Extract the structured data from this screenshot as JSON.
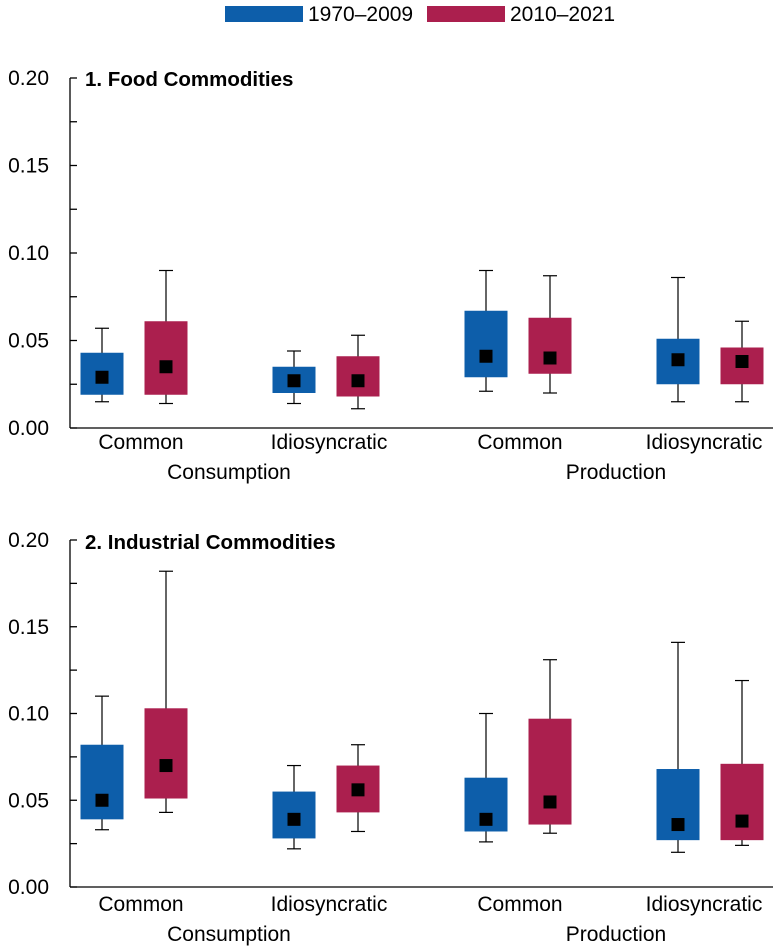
{
  "chart_data": [
    {
      "type": "box",
      "title": "1. Food Commodities",
      "legend": "top-center",
      "grid": false,
      "ylim": [
        0,
        0.2
      ],
      "yticks": [
        "0.00",
        "0.05",
        "0.10",
        "0.15",
        "0.20"
      ],
      "ytick_minor_step": 0.025,
      "groups": [
        {
          "label": "Consumption",
          "categories": [
            "Common",
            "Idiosyncratic"
          ]
        },
        {
          "label": "Production",
          "categories": [
            "Common",
            "Idiosyncratic"
          ]
        }
      ],
      "series": [
        {
          "name": "1970–2009",
          "color": "#0D5EAA",
          "boxes": [
            {
              "whisker_low": 0.015,
              "box_low": 0.019,
              "marker": 0.029,
              "box_high": 0.043,
              "whisker_high": 0.057
            },
            {
              "whisker_low": 0.014,
              "box_low": 0.02,
              "marker": 0.027,
              "box_high": 0.035,
              "whisker_high": 0.044
            },
            {
              "whisker_low": 0.021,
              "box_low": 0.029,
              "marker": 0.041,
              "box_high": 0.067,
              "whisker_high": 0.09
            },
            {
              "whisker_low": 0.015,
              "box_low": 0.025,
              "marker": 0.039,
              "box_high": 0.051,
              "whisker_high": 0.086
            }
          ]
        },
        {
          "name": "2010–2021",
          "color": "#AB1F4E",
          "boxes": [
            {
              "whisker_low": 0.014,
              "box_low": 0.019,
              "marker": 0.035,
              "box_high": 0.061,
              "whisker_high": 0.09
            },
            {
              "whisker_low": 0.011,
              "box_low": 0.018,
              "marker": 0.027,
              "box_high": 0.041,
              "whisker_high": 0.053
            },
            {
              "whisker_low": 0.02,
              "box_low": 0.031,
              "marker": 0.04,
              "box_high": 0.063,
              "whisker_high": 0.087
            },
            {
              "whisker_low": 0.015,
              "box_low": 0.025,
              "marker": 0.038,
              "box_high": 0.046,
              "whisker_high": 0.061
            }
          ]
        }
      ]
    },
    {
      "type": "box",
      "title": "2. Industrial Commodities",
      "legend": "top-center",
      "grid": false,
      "ylim": [
        0,
        0.2
      ],
      "yticks": [
        "0.00",
        "0.05",
        "0.10",
        "0.15",
        "0.20"
      ],
      "ytick_minor_step": 0.025,
      "groups": [
        {
          "label": "Consumption",
          "categories": [
            "Common",
            "Idiosyncratic"
          ]
        },
        {
          "label": "Production",
          "categories": [
            "Common",
            "Idiosyncratic"
          ]
        }
      ],
      "series": [
        {
          "name": "1970–2009",
          "color": "#0D5EAA",
          "boxes": [
            {
              "whisker_low": 0.033,
              "box_low": 0.039,
              "marker": 0.05,
              "box_high": 0.082,
              "whisker_high": 0.11
            },
            {
              "whisker_low": 0.022,
              "box_low": 0.028,
              "marker": 0.039,
              "box_high": 0.055,
              "whisker_high": 0.07
            },
            {
              "whisker_low": 0.026,
              "box_low": 0.032,
              "marker": 0.039,
              "box_high": 0.063,
              "whisker_high": 0.1
            },
            {
              "whisker_low": 0.02,
              "box_low": 0.027,
              "marker": 0.036,
              "box_high": 0.068,
              "whisker_high": 0.141
            }
          ]
        },
        {
          "name": "2010–2021",
          "color": "#AB1F4E",
          "boxes": [
            {
              "whisker_low": 0.043,
              "box_low": 0.051,
              "marker": 0.07,
              "box_high": 0.103,
              "whisker_high": 0.182
            },
            {
              "whisker_low": 0.032,
              "box_low": 0.043,
              "marker": 0.056,
              "box_high": 0.07,
              "whisker_high": 0.082
            },
            {
              "whisker_low": 0.031,
              "box_low": 0.036,
              "marker": 0.049,
              "box_high": 0.097,
              "whisker_high": 0.131
            },
            {
              "whisker_low": 0.024,
              "box_low": 0.027,
              "marker": 0.038,
              "box_high": 0.071,
              "whisker_high": 0.119
            }
          ]
        }
      ]
    }
  ]
}
